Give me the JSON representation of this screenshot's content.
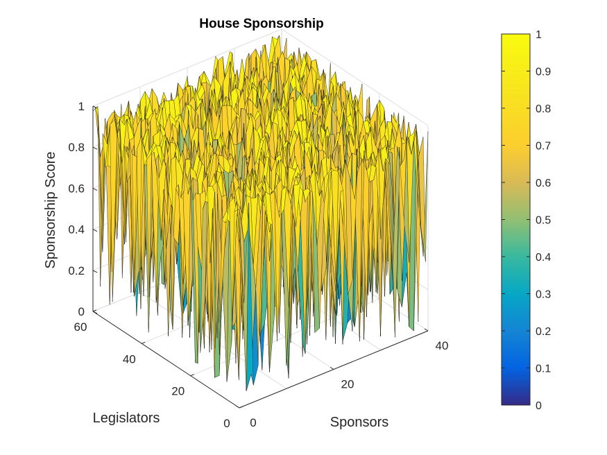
{
  "chart_data": {
    "type": "surface",
    "title": "House Sponsorship",
    "xlabel": "Sponsors",
    "ylabel": "Legislators",
    "zlabel": "Sponsorship Score",
    "xlim": [
      0,
      40
    ],
    "ylim": [
      0,
      60
    ],
    "zlim": [
      0,
      1
    ],
    "x_ticks": [
      "0",
      "20",
      "40"
    ],
    "y_ticks": [
      "0",
      "20",
      "40",
      "60"
    ],
    "z_ticks": [
      "0",
      "0.2",
      "0.4",
      "0.6",
      "0.8",
      "1"
    ],
    "colormap": "parula",
    "colorbar": {
      "placement": "right",
      "limits": [
        0,
        1
      ],
      "ticks": [
        "0",
        "0.1",
        "0.2",
        "0.3",
        "0.4",
        "0.5",
        "0.6",
        "0.7",
        "0.8",
        "0.9",
        "1"
      ]
    },
    "grid": true,
    "note": "Surface over a 40 sponsor x 60 legislator grid; values mostly between 0.4 and 1 with a dense mix of sharp drops toward 0."
  }
}
